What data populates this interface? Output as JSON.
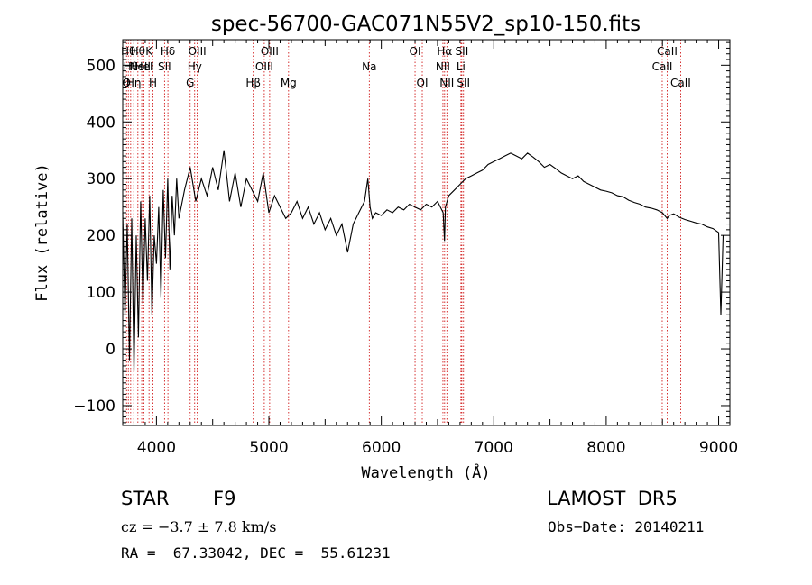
{
  "chart_data": {
    "type": "line",
    "title": "spec-56700-GAC071N55V2_sp10-150.fits",
    "xlabel": "Wavelength (Å)",
    "ylabel": "Flux (relative)",
    "xlim": [
      3700,
      9100
    ],
    "ylim": [
      -135,
      545
    ],
    "xticks": [
      4000,
      5000,
      6000,
      7000,
      8000,
      9000
    ],
    "yticks": [
      -100,
      0,
      100,
      200,
      300,
      400,
      500
    ],
    "line_color": "#000000",
    "marker_color": "#cc0000",
    "series": [
      {
        "x": [
          3700,
          3720,
          3740,
          3760,
          3780,
          3800,
          3820,
          3840,
          3860,
          3880,
          3900,
          3920,
          3940,
          3960,
          3980,
          4000,
          4020,
          4040,
          4060,
          4080,
          4100,
          4120,
          4140,
          4160,
          4180,
          4200,
          4250,
          4300,
          4350,
          4400,
          4450,
          4500,
          4550,
          4600,
          4650,
          4700,
          4750,
          4800,
          4850,
          4900,
          4950,
          5000,
          5050,
          5100,
          5150,
          5200,
          5250,
          5300,
          5350,
          5400,
          5450,
          5500,
          5550,
          5600,
          5650,
          5700,
          5750,
          5800,
          5850,
          5880,
          5900,
          5920,
          5950,
          6000,
          6050,
          6100,
          6150,
          6200,
          6250,
          6300,
          6350,
          6400,
          6450,
          6500,
          6550,
          6562,
          6570,
          6600,
          6650,
          6700,
          6750,
          6800,
          6850,
          6900,
          6950,
          7000,
          7050,
          7100,
          7150,
          7200,
          7250,
          7300,
          7350,
          7400,
          7450,
          7500,
          7550,
          7600,
          7650,
          7700,
          7750,
          7800,
          7850,
          7900,
          7950,
          8000,
          8050,
          8100,
          8150,
          8200,
          8250,
          8300,
          8350,
          8400,
          8450,
          8500,
          8542,
          8560,
          8600,
          8650,
          8700,
          8750,
          8800,
          8850,
          8900,
          8950,
          9000,
          9020,
          9040
        ],
        "y": [
          240,
          60,
          220,
          -20,
          230,
          -40,
          200,
          20,
          260,
          80,
          230,
          120,
          270,
          60,
          200,
          150,
          250,
          90,
          280,
          160,
          300,
          140,
          270,
          200,
          300,
          230,
          280,
          320,
          260,
          300,
          270,
          320,
          280,
          350,
          260,
          310,
          250,
          300,
          280,
          260,
          310,
          240,
          270,
          250,
          230,
          240,
          260,
          230,
          250,
          220,
          240,
          210,
          230,
          200,
          220,
          170,
          220,
          240,
          260,
          300,
          250,
          230,
          240,
          235,
          245,
          240,
          250,
          245,
          255,
          250,
          245,
          255,
          250,
          260,
          240,
          190,
          250,
          270,
          280,
          290,
          300,
          305,
          310,
          315,
          325,
          330,
          335,
          340,
          345,
          340,
          335,
          345,
          338,
          330,
          320,
          325,
          318,
          310,
          305,
          300,
          305,
          295,
          290,
          285,
          280,
          278,
          275,
          270,
          268,
          262,
          258,
          255,
          250,
          248,
          245,
          240,
          230,
          235,
          238,
          232,
          228,
          225,
          222,
          220,
          215,
          212,
          205,
          60,
          200
        ]
      }
    ],
    "lines": [
      {
        "x": 3734,
        "label": "O",
        "row": 2
      },
      {
        "x": 3750,
        "label": "Hθ",
        "row": 0
      },
      {
        "x": 3771,
        "label": "Hθ",
        "row": 1
      },
      {
        "x": 3798,
        "label": "Hη",
        "row": 2
      },
      {
        "x": 3835,
        "label": "Hθ",
        "row": 0
      },
      {
        "x": 3869,
        "label": "NeIII",
        "row": 1
      },
      {
        "x": 3889,
        "label": "HeI",
        "row": 1
      },
      {
        "x": 3934,
        "label": "K",
        "row": 0
      },
      {
        "x": 3969,
        "label": "H",
        "row": 2
      },
      {
        "x": 4072,
        "label": "SII",
        "row": 1
      },
      {
        "x": 4102,
        "label": "Hδ",
        "row": 0
      },
      {
        "x": 4300,
        "label": "G",
        "row": 2
      },
      {
        "x": 4340,
        "label": "Hγ",
        "row": 1
      },
      {
        "x": 4363,
        "label": "OIII",
        "row": 0
      },
      {
        "x": 4861,
        "label": "Hβ",
        "row": 2
      },
      {
        "x": 4959,
        "label": "OIII",
        "row": 1
      },
      {
        "x": 5007,
        "label": "OIII",
        "row": 0
      },
      {
        "x": 5175,
        "label": "Mg",
        "row": 2
      },
      {
        "x": 5893,
        "label": "Na",
        "row": 1
      },
      {
        "x": 6300,
        "label": "OI",
        "row": 0
      },
      {
        "x": 6364,
        "label": "OI",
        "row": 2
      },
      {
        "x": 6548,
        "label": "NII",
        "row": 1
      },
      {
        "x": 6563,
        "label": "Hα",
        "row": 0
      },
      {
        "x": 6583,
        "label": "NII",
        "row": 2
      },
      {
        "x": 6708,
        "label": "Li",
        "row": 1
      },
      {
        "x": 6716,
        "label": "SII",
        "row": 0
      },
      {
        "x": 6731,
        "label": "SII",
        "row": 2
      },
      {
        "x": 8498,
        "label": "CaII",
        "row": 1
      },
      {
        "x": 8542,
        "label": "CaII",
        "row": 0
      },
      {
        "x": 8662,
        "label": "CaII",
        "row": 2
      }
    ]
  },
  "info": {
    "class_label": "STAR",
    "subclass": "F9",
    "survey": "LAMOST  DR5",
    "velocity": "cz = −3.7 ± 7.8 km/s",
    "obs_date": "Obs−Date: 20140211",
    "coords": "RA =  67.33042, DEC =  55.61231"
  }
}
